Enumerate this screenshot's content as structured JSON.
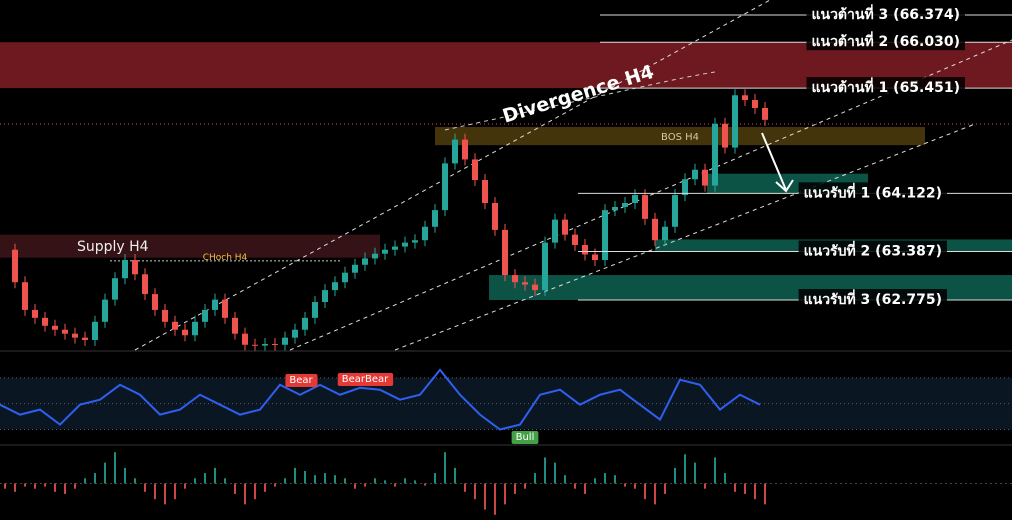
{
  "chart_data": {
    "type": "candlestick",
    "ylim": [
      62.144,
      66.563
    ],
    "xlim": [
      -0.5,
      100.7
    ],
    "colors": {
      "up": "#26a69a",
      "down": "#ef5350"
    },
    "close": [
      63.41,
      63.0,
      62.65,
      62.55,
      62.45,
      62.4,
      62.35,
      62.3,
      62.27,
      62.5,
      62.78,
      63.05,
      63.28,
      63.1,
      62.85,
      62.65,
      62.5,
      62.4,
      62.33,
      62.5,
      62.65,
      62.78,
      62.55,
      62.35,
      62.21,
      62.2,
      62.22,
      62.21,
      62.3,
      62.4,
      62.55,
      62.75,
      62.9,
      63.0,
      63.12,
      63.22,
      63.3,
      63.36,
      63.41,
      63.45,
      63.5,
      63.53,
      63.7,
      63.91,
      64.5,
      64.8,
      64.55,
      64.29,
      64.0,
      63.66,
      63.09,
      63.0,
      62.97,
      62.9,
      63.5,
      63.79,
      63.6,
      63.47,
      63.35,
      63.28,
      63.91,
      63.95,
      64.0,
      64.1,
      63.8,
      63.53,
      63.7,
      64.1,
      64.3,
      64.42,
      64.22,
      65.0,
      64.7,
      65.36,
      65.3,
      65.2,
      65.05
    ],
    "resistance_levels": [
      {
        "label": "แนวต้านที่ 3 (66.374)",
        "value": 66.374
      },
      {
        "label": "แนวต้านที่ 2 (66.030)",
        "value": 66.03
      },
      {
        "label": "แนวต้านที่ 1 (65.451)",
        "value": 65.451
      }
    ],
    "support_levels": [
      {
        "label": "แนวรับที่ 1 (64.122)",
        "value": 64.122
      },
      {
        "label": "แนวรับที่ 2 (63.387)",
        "value": 63.387
      },
      {
        "label": "แนวรับที่ 3 (62.775)",
        "value": 62.775
      }
    ],
    "zones": [
      {
        "x": [
          -0.5,
          100.7
        ],
        "y": [
          65.451,
          66.03
        ],
        "color": "#7a1c24"
      },
      {
        "label": "BOS H4",
        "x": [
          43,
          92
        ],
        "y": [
          64.73,
          64.96
        ],
        "color": "#4a3a0c"
      },
      {
        "x": [
          70.2,
          86.3
        ],
        "y": [
          64.122,
          64.37
        ],
        "color": "#0d5c4e"
      },
      {
        "x": [
          65,
          100.7
        ],
        "y": [
          63.387,
          63.54
        ],
        "color": "#0d5c4e"
      },
      {
        "x": [
          48.4,
          100.7
        ],
        "y": [
          62.775,
          63.09
        ],
        "color": "#0d5c4e"
      },
      {
        "label": "Supply H4",
        "x": [
          -0.5,
          37.5
        ],
        "y": [
          63.31,
          63.6
        ],
        "color": "#3a1418"
      }
    ],
    "choch": {
      "label": "CHoch H4",
      "x": [
        10.5,
        33.5
      ],
      "value": 63.27
    },
    "divergence_label": "Divergence H4",
    "oscillator": {
      "color": "#2f5ff0",
      "ylim": [
        18,
        90
      ],
      "levels": [
        30,
        50,
        70
      ],
      "values": [
        49.2,
        41.5,
        45.4,
        33.8,
        49.2,
        53.1,
        64.6,
        56.9,
        41.5,
        45.4,
        56.9,
        49.2,
        41.5,
        45.4,
        64.6,
        56.9,
        64.6,
        56.9,
        62.3,
        60.8,
        53.1,
        56.9,
        76.2,
        56.9,
        41.5,
        30,
        33.8,
        56.9,
        60.8,
        49.2,
        56.9,
        60.8,
        49.2,
        37.7,
        68.5,
        64.6,
        45.4,
        56.9,
        49.2
      ],
      "signals": [
        {
          "label": "Bear",
          "color": "#e53935"
        },
        {
          "label": "BearBear",
          "color": "#e53935"
        },
        {
          "label": "Bull",
          "color": "#43a047"
        }
      ]
    },
    "histogram": {
      "ylim": [
        -35,
        35
      ],
      "values": [
        -5,
        -8,
        -3,
        -5,
        -3,
        -8,
        -10,
        -5,
        5,
        10,
        20,
        30,
        15,
        5,
        -8,
        -15,
        -20,
        -15,
        -5,
        5,
        10,
        15,
        5,
        -10,
        -20,
        -15,
        -8,
        -3,
        5,
        15,
        12,
        8,
        10,
        8,
        5,
        -5,
        -3,
        5,
        3,
        -3,
        5,
        3,
        -2,
        10,
        30,
        15,
        -8,
        -15,
        -25,
        -30,
        -20,
        -10,
        -5,
        10,
        25,
        20,
        8,
        -5,
        -10,
        5,
        10,
        8,
        -3,
        -5,
        -15,
        -20,
        -10,
        15,
        28,
        20,
        -5,
        25,
        10,
        -8,
        -10,
        -15,
        -20
      ]
    }
  }
}
